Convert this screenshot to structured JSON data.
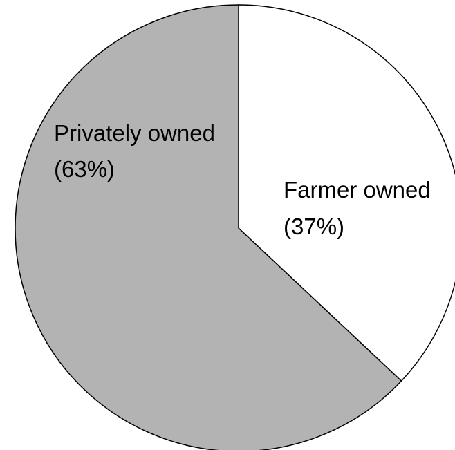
{
  "chart_data": {
    "type": "pie",
    "title": "",
    "slices": [
      {
        "label": "Farmer owned",
        "pct_label": "(37%)",
        "value": 37,
        "color": "#ffffff"
      },
      {
        "label": "Privately owned",
        "pct_label": "(63%)",
        "value": 63,
        "color": "#b3b3b3"
      }
    ],
    "start": "12 o'clock",
    "direction": "clockwise",
    "legend": "none"
  }
}
